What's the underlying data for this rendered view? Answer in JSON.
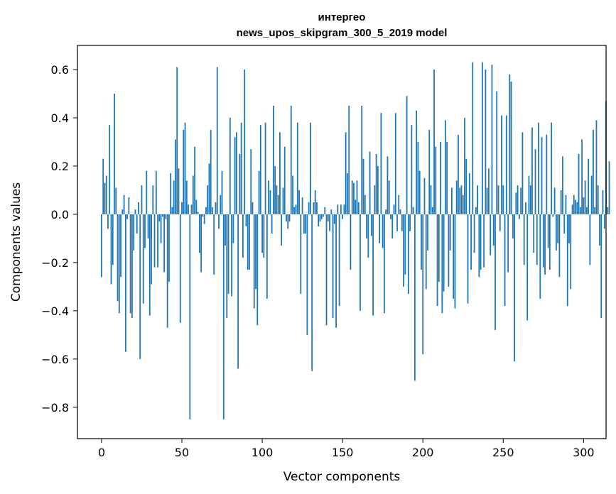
{
  "chart_data": {
    "type": "bar",
    "title": [
      "интергео",
      "news_upos_skipgram_300_5_2019 model"
    ],
    "xlabel": "Vector components",
    "ylabel": "Components values",
    "xlim": [
      -15,
      314
    ],
    "ylim": [
      -0.93,
      0.7
    ],
    "xticks": [
      0,
      50,
      100,
      150,
      200,
      250,
      300
    ],
    "xtick_labels": [
      "0",
      "50",
      "100",
      "150",
      "200",
      "250",
      "300"
    ],
    "yticks": [
      -0.8,
      -0.6,
      -0.4,
      -0.2,
      0.0,
      0.2,
      0.4,
      0.6
    ],
    "ytick_labels": [
      "−0.8",
      "−0.6",
      "−0.4",
      "−0.2",
      "0.0",
      "0.2",
      "0.4",
      "0.6"
    ],
    "grid": false,
    "bar_color": "#1f77b4",
    "series": [
      {
        "name": "components",
        "values": [
          -0.26,
          0.23,
          0.13,
          0.16,
          -0.06,
          0.37,
          -0.29,
          -0.21,
          0.5,
          0.11,
          -0.36,
          -0.41,
          -0.26,
          0.02,
          0.08,
          -0.57,
          -0.02,
          0.07,
          -0.41,
          -0.43,
          -0.15,
          0.02,
          -0.08,
          0.05,
          -0.6,
          0.12,
          -0.37,
          -0.14,
          0.18,
          -0.1,
          -0.42,
          -0.29,
          0.12,
          -0.22,
          0.18,
          -0.22,
          -0.03,
          -0.12,
          -0.01,
          -0.24,
          -0.02,
          -0.47,
          -0.28,
          0.17,
          0.03,
          0.14,
          0.31,
          0.61,
          0.19,
          -0.45,
          0.05,
          0.35,
          0.38,
          0.14,
          0.04,
          -0.85,
          0.04,
          0.16,
          0.28,
          0.06,
          0.01,
          -0.16,
          -0.24,
          -0.01,
          -0.04,
          0.03,
          0.12,
          0.21,
          0.35,
          0.03,
          -0.25,
          0.05,
          0.61,
          -0.06,
          0.08,
          0.18,
          -0.85,
          -0.13,
          -0.43,
          -0.33,
          0.4,
          -0.34,
          -0.12,
          0.32,
          0.34,
          -0.64,
          0.25,
          0.38,
          -0.18,
          0.6,
          -0.05,
          -0.23,
          -0.23,
          0.27,
          0.05,
          -0.39,
          -0.31,
          -0.46,
          0.18,
          0.37,
          -0.16,
          -0.18,
          0.38,
          -0.35,
          0.14,
          0.1,
          -0.08,
          0.45,
          0.2,
          0.12,
          0.08,
          0.34,
          -0.13,
          0.11,
          0.28,
          -0.03,
          -0.06,
          -0.03,
          0.45,
          0.16,
          0.03,
          0.04,
          0.38,
          0.1,
          -0.33,
          0.07,
          -0.08,
          -0.08,
          -0.5,
          0.05,
          0.38,
          -0.65,
          0.05,
          0.1,
          0.05,
          -0.05,
          -0.03,
          -0.02,
          -0.01,
          0.03,
          -0.46,
          -0.03,
          -0.07,
          0.02,
          -0.43,
          -0.04,
          -0.47,
          0.04,
          -0.38,
          0.04,
          -0.02,
          0.04,
          0.34,
          0.17,
          0.45,
          -0.23,
          0.14,
          0.13,
          0.06,
          0.14,
          0.05,
          -0.4,
          0.45,
          0.23,
          0.08,
          -0.1,
          -0.18,
          0.26,
          -0.09,
          -0.42,
          0.12,
          0.25,
          0.2,
          -0.12,
          0.42,
          -0.14,
          -0.41,
          0.02,
          0.24,
          0.14,
          -0.02,
          -0.1,
          0.04,
          0.42,
          -0.07,
          0.08,
          0.02,
          -0.07,
          -0.3,
          -0.25,
          0.49,
          -0.33,
          -0.07,
          0.37,
          0.03,
          -0.69,
          0.43,
          0.3,
          0.18,
          -0.23,
          -0.58,
          0.15,
          -0.31,
          -0.15,
          0.35,
          0.12,
          0.03,
          0.6,
          0.28,
          -0.38,
          -0.28,
          0.3,
          -0.41,
          -0.32,
          0.39,
          0.3,
          -0.3,
          -0.15,
          0.11,
          -0.35,
          -0.39,
          0.14,
          0.33,
          0.11,
          0.12,
          0.08,
          0.4,
          0.23,
          -0.37,
          0.17,
          -0.23,
          0.63,
          -0.16,
          0.03,
          0.12,
          -0.26,
          -0.23,
          0.63,
          -0.22,
          0.6,
          0.11,
          0.19,
          -0.17,
          0.62,
          -0.13,
          -0.48,
          0.51,
          0.12,
          -0.07,
          0.41,
          0.12,
          -0.38,
          0.41,
          -0.24,
          0.58,
          0.55,
          -0.1,
          -0.61,
          0.09,
          0.12,
          -0.02,
          0.11,
          0.34,
          -0.21,
          0.05,
          -0.44,
          0.16,
          0.12,
          0.36,
          -0.16,
          0.27,
          -0.21,
          0.38,
          -0.35,
          0.32,
          -0.22,
          -0.25,
          0.33,
          -0.14,
          -0.23,
          0.38,
          -0.01,
          0.11,
          -0.15,
          -0.12,
          -0.26,
          0.1,
          0.24,
          -0.08,
          0.08,
          -0.38,
          -0.12,
          -0.31,
          0.04,
          0.08,
          0.06,
          0.05,
          0.25,
          0.03,
          0.31,
          0.07,
          0.14,
          0.03,
          0.23,
          -0.21,
          0.16,
          0.35,
          0.03,
          0.39,
          0.12,
          -0.13,
          -0.43,
          0.1,
          -0.06,
          0.47,
          0.03,
          0.22
        ]
      }
    ]
  }
}
